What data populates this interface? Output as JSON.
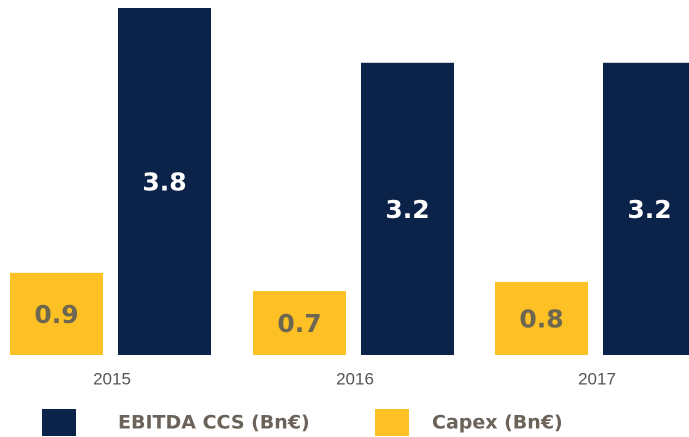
{
  "chart_data": {
    "type": "bar",
    "categories": [
      "2015",
      "2016",
      "2017"
    ],
    "series": [
      {
        "name": "EBITDA CCS (Bn€)",
        "color": "#0b2349",
        "values": [
          3.8,
          3.2,
          3.2
        ]
      },
      {
        "name": "Capex (Bn€)",
        "color": "#fdc125",
        "values": [
          0.9,
          0.7,
          0.8
        ]
      }
    ]
  }
}
